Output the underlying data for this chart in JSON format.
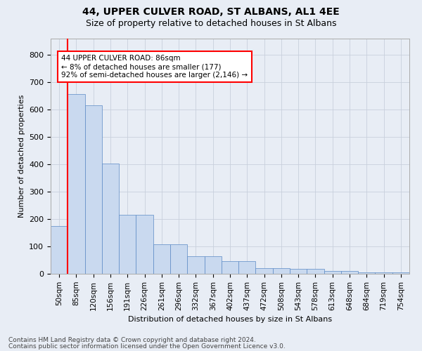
{
  "title": "44, UPPER CULVER ROAD, ST ALBANS, AL1 4EE",
  "subtitle": "Size of property relative to detached houses in St Albans",
  "xlabel": "Distribution of detached houses by size in St Albans",
  "ylabel": "Number of detached properties",
  "footer_line1": "Contains HM Land Registry data © Crown copyright and database right 2024.",
  "footer_line2": "Contains public sector information licensed under the Open Government Licence v3.0.",
  "bar_labels": [
    "50sqm",
    "85sqm",
    "120sqm",
    "156sqm",
    "191sqm",
    "226sqm",
    "261sqm",
    "296sqm",
    "332sqm",
    "367sqm",
    "402sqm",
    "437sqm",
    "472sqm",
    "508sqm",
    "543sqm",
    "578sqm",
    "613sqm",
    "648sqm",
    "684sqm",
    "719sqm",
    "754sqm"
  ],
  "bar_values": [
    175,
    658,
    615,
    402,
    215,
    215,
    108,
    108,
    65,
    65,
    47,
    47,
    20,
    20,
    17,
    17,
    10,
    10,
    5,
    5,
    6
  ],
  "bar_color": "#c9d9ef",
  "bar_edge_color": "#5b8ac5",
  "annotation_line1": "44 UPPER CULVER ROAD: 86sqm",
  "annotation_line2": "← 8% of detached houses are smaller (177)",
  "annotation_line3": "92% of semi-detached houses are larger (2,146) →",
  "annotation_box_facecolor": "white",
  "annotation_box_edgecolor": "red",
  "vline_color": "red",
  "ylim": [
    0,
    860
  ],
  "yticks": [
    0,
    100,
    200,
    300,
    400,
    500,
    600,
    700,
    800
  ],
  "grid_color": "#c8d0dc",
  "background_color": "#e8edf5",
  "plot_bg_color": "#e8edf5",
  "spine_color": "#aaaaaa",
  "title_fontsize": 10,
  "subtitle_fontsize": 9,
  "ylabel_fontsize": 8,
  "tick_fontsize": 7.5,
  "footer_fontsize": 6.5
}
